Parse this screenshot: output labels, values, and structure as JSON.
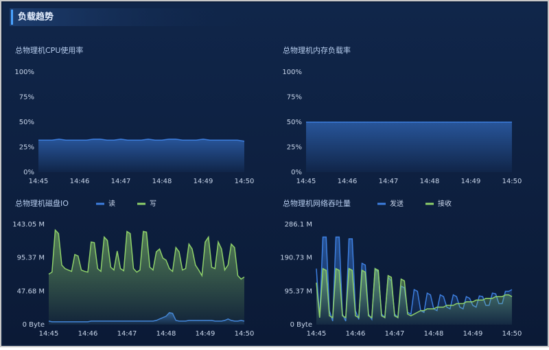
{
  "header": {
    "title": "负载趋势"
  },
  "chart_data": [
    {
      "type": "line",
      "area": true,
      "title": "总物理机CPU使用率",
      "categories": [
        "14:45",
        null,
        null,
        null,
        null,
        null,
        "14:46",
        null,
        null,
        null,
        null,
        null,
        "14:47",
        null,
        null,
        null,
        null,
        null,
        "14:48",
        null,
        null,
        null,
        null,
        null,
        "14:49",
        null,
        null,
        null,
        null,
        null,
        "14:50"
      ],
      "series": [
        {
          "name": null,
          "color": "#3d7fe0",
          "values": [
            32,
            32,
            32,
            33,
            32,
            32,
            32,
            32,
            33,
            33,
            32,
            32,
            33,
            32,
            32,
            32,
            33,
            32,
            32,
            33,
            33,
            32,
            32,
            32,
            33,
            32,
            32,
            32,
            32,
            32,
            31
          ]
        }
      ],
      "ylim": [
        0,
        100
      ],
      "yticks": [
        {
          "value": 0,
          "label": "0%"
        },
        {
          "value": 25,
          "label": "25%"
        },
        {
          "value": 50,
          "label": "50%"
        },
        {
          "value": 75,
          "label": "75%"
        },
        {
          "value": 100,
          "label": "100%"
        }
      ]
    },
    {
      "type": "line",
      "area": true,
      "title": "总物理机内存负载率",
      "categories": [
        "14:45",
        null,
        null,
        null,
        null,
        null,
        "14:46",
        null,
        null,
        null,
        null,
        null,
        "14:47",
        null,
        null,
        null,
        null,
        null,
        "14:48",
        null,
        null,
        null,
        null,
        null,
        "14:49",
        null,
        null,
        null,
        null,
        null,
        "14:50"
      ],
      "series": [
        {
          "name": null,
          "color": "#3d7fe0",
          "values": [
            50,
            50,
            50,
            50,
            50,
            50,
            50,
            50,
            50,
            50,
            50,
            50,
            50,
            50,
            50,
            50,
            50,
            50,
            50,
            50,
            50,
            50,
            50,
            50,
            50,
            50,
            50,
            50,
            50,
            50,
            50
          ]
        }
      ],
      "ylim": [
        0,
        100
      ],
      "yticks": [
        {
          "value": 0,
          "label": "0%"
        },
        {
          "value": 25,
          "label": "25%"
        },
        {
          "value": 50,
          "label": "50%"
        },
        {
          "value": 75,
          "label": "75%"
        },
        {
          "value": 100,
          "label": "100%"
        }
      ]
    },
    {
      "type": "line",
      "area": true,
      "title": "总物理机磁盘IO",
      "categories": [
        "14:45",
        null,
        null,
        null,
        null,
        null,
        null,
        null,
        null,
        null,
        null,
        null,
        "14:46",
        null,
        null,
        null,
        null,
        null,
        null,
        null,
        null,
        null,
        null,
        null,
        "14:47",
        null,
        null,
        null,
        null,
        null,
        null,
        null,
        null,
        null,
        null,
        null,
        "14:48",
        null,
        null,
        null,
        null,
        null,
        null,
        null,
        null,
        null,
        null,
        null,
        "14:49",
        null,
        null,
        null,
        null,
        null,
        null,
        null,
        null,
        null,
        null,
        null,
        "14:50"
      ],
      "series": [
        {
          "name": "读",
          "color": "#3d7fe0",
          "values": [
            5,
            4,
            4,
            4,
            4,
            4,
            4,
            4,
            4,
            4,
            4,
            4,
            4,
            5,
            5,
            5,
            5,
            5,
            5,
            5,
            5,
            5,
            5,
            5,
            5,
            5,
            5,
            5,
            5,
            5,
            5,
            5,
            5,
            6,
            8,
            10,
            12,
            17,
            16,
            6,
            5,
            5,
            5,
            6,
            6,
            6,
            6,
            6,
            6,
            6,
            6,
            5,
            5,
            5,
            6,
            8,
            6,
            5,
            5,
            6,
            5
          ]
        },
        {
          "name": "写",
          "color": "#8fd16a",
          "values": [
            72,
            75,
            135,
            130,
            85,
            80,
            78,
            76,
            100,
            98,
            78,
            76,
            75,
            118,
            117,
            80,
            76,
            125,
            120,
            82,
            78,
            105,
            80,
            77,
            133,
            130,
            80,
            75,
            78,
            133,
            132,
            82,
            78,
            104,
            108,
            95,
            92,
            80,
            76,
            110,
            104,
            78,
            80,
            115,
            108,
            85,
            78,
            70,
            118,
            125,
            82,
            80,
            118,
            108,
            78,
            85,
            115,
            110,
            70,
            65,
            68
          ]
        }
      ],
      "ylim": [
        0,
        143.05
      ],
      "yticks": [
        {
          "value": 0,
          "label": "0 Byte"
        },
        {
          "value": 47.68,
          "label": "47.68 M"
        },
        {
          "value": 95.37,
          "label": "95.37 M"
        },
        {
          "value": 143.05,
          "label": "143.05 M"
        }
      ]
    },
    {
      "type": "line",
      "area": true,
      "title": "总物理机网络吞吐量",
      "categories": [
        "14:45",
        null,
        null,
        null,
        null,
        null,
        null,
        null,
        null,
        null,
        null,
        null,
        "14:46",
        null,
        null,
        null,
        null,
        null,
        null,
        null,
        null,
        null,
        null,
        null,
        "14:47",
        null,
        null,
        null,
        null,
        null,
        null,
        null,
        null,
        null,
        null,
        null,
        "14:48",
        null,
        null,
        null,
        null,
        null,
        null,
        null,
        null,
        null,
        null,
        null,
        "14:49",
        null,
        null,
        null,
        null,
        null,
        null,
        null,
        null,
        null,
        null,
        null,
        "14:50"
      ],
      "series": [
        {
          "name": "发送",
          "color": "#3d7fe0",
          "values": [
            160,
            20,
            250,
            250,
            40,
            10,
            250,
            250,
            30,
            10,
            245,
            245,
            40,
            15,
            175,
            170,
            30,
            15,
            160,
            150,
            30,
            20,
            135,
            125,
            30,
            20,
            110,
            105,
            35,
            30,
            100,
            95,
            40,
            35,
            90,
            85,
            45,
            40,
            85,
            80,
            50,
            45,
            85,
            80,
            50,
            45,
            80,
            75,
            55,
            50,
            82,
            80,
            55,
            55,
            90,
            88,
            60,
            60,
            95,
            95,
            100
          ]
        },
        {
          "name": "接收",
          "color": "#8fd16a",
          "values": [
            120,
            20,
            160,
            155,
            25,
            20,
            160,
            155,
            25,
            20,
            160,
            155,
            25,
            20,
            155,
            150,
            25,
            20,
            160,
            155,
            25,
            20,
            140,
            135,
            25,
            20,
            130,
            125,
            30,
            25,
            30,
            35,
            40,
            40,
            45,
            45,
            45,
            50,
            50,
            50,
            55,
            55,
            55,
            60,
            60,
            60,
            65,
            65,
            65,
            70,
            70,
            70,
            75,
            75,
            75,
            80,
            80,
            80,
            85,
            85,
            80
          ]
        }
      ],
      "ylim": [
        0,
        286.1
      ],
      "yticks": [
        {
          "value": 0,
          "label": "0 Byte"
        },
        {
          "value": 95.37,
          "label": "95.37 M"
        },
        {
          "value": 190.73,
          "label": "190.73 M"
        },
        {
          "value": 286.1,
          "label": "286.1 M"
        }
      ]
    }
  ]
}
